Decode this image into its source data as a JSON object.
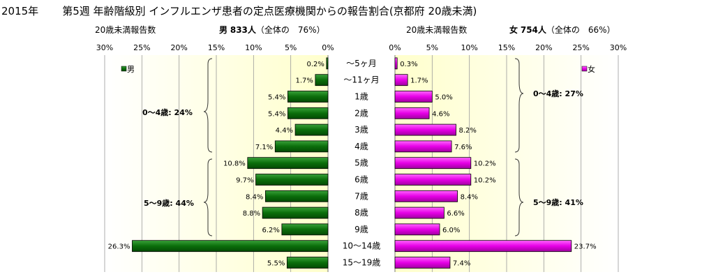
{
  "title": {
    "year": "2015年",
    "text": "第5週 年齢階級別 インフルエンザ患者の定点医療機関からの報告割合(京都府 20歳未満)"
  },
  "left_header": {
    "label": "20歳未満報告数",
    "sex": "男",
    "count": "833人",
    "share": "（全体の　76%）"
  },
  "right_header": {
    "label": "20歳未満報告数",
    "sex": "女",
    "count": "754人",
    "share": "（全体の　66%）"
  },
  "colors": {
    "male": "#0b6e0b",
    "female": "#e600e6",
    "plot_bg_edge": "#ffffcc",
    "grid": "#9a9a9a"
  },
  "chart_data": {
    "type": "bar",
    "layout": "population-pyramid",
    "categories": [
      "～5ヶ月",
      "～11ヶ月",
      "1歳",
      "2歳",
      "3歳",
      "4歳",
      "5歳",
      "6歳",
      "7歳",
      "8歳",
      "9歳",
      "10～14歳",
      "15～19歳"
    ],
    "x_ticks": [
      "30%",
      "25%",
      "20%",
      "15%",
      "10%",
      "5%",
      "0%"
    ],
    "x_ticks_right": [
      "0%",
      "5%",
      "10%",
      "15%",
      "20%",
      "25%",
      "30%"
    ],
    "xlim": [
      0,
      30
    ],
    "series": [
      {
        "name": "男",
        "values": [
          0.2,
          1.7,
          5.4,
          5.4,
          4.4,
          7.1,
          10.8,
          9.7,
          8.4,
          8.8,
          6.2,
          26.3,
          5.5
        ],
        "labels": [
          "0.2%",
          "1.7%",
          "5.4%",
          "5.4%",
          "4.4%",
          "7.1%",
          "10.8%",
          "9.7%",
          "8.4%",
          "8.8%",
          "6.2%",
          "26.3%",
          "5.5%"
        ]
      },
      {
        "name": "女",
        "values": [
          0.3,
          1.7,
          5.0,
          4.6,
          8.2,
          7.6,
          10.2,
          10.2,
          8.4,
          6.6,
          6.0,
          23.7,
          7.4
        ],
        "labels": [
          "0.3%",
          "1.7%",
          "5.0%",
          "4.6%",
          "8.2%",
          "7.6%",
          "10.2%",
          "10.2%",
          "8.4%",
          "6.6%",
          "6.0%",
          "23.7%",
          "7.4%"
        ]
      }
    ],
    "group_annotations": {
      "male": [
        "0～4歳: 24%",
        "5～9歳: 44%"
      ],
      "female": [
        "0～4歳: 27%",
        "5～9歳: 41%"
      ]
    }
  }
}
